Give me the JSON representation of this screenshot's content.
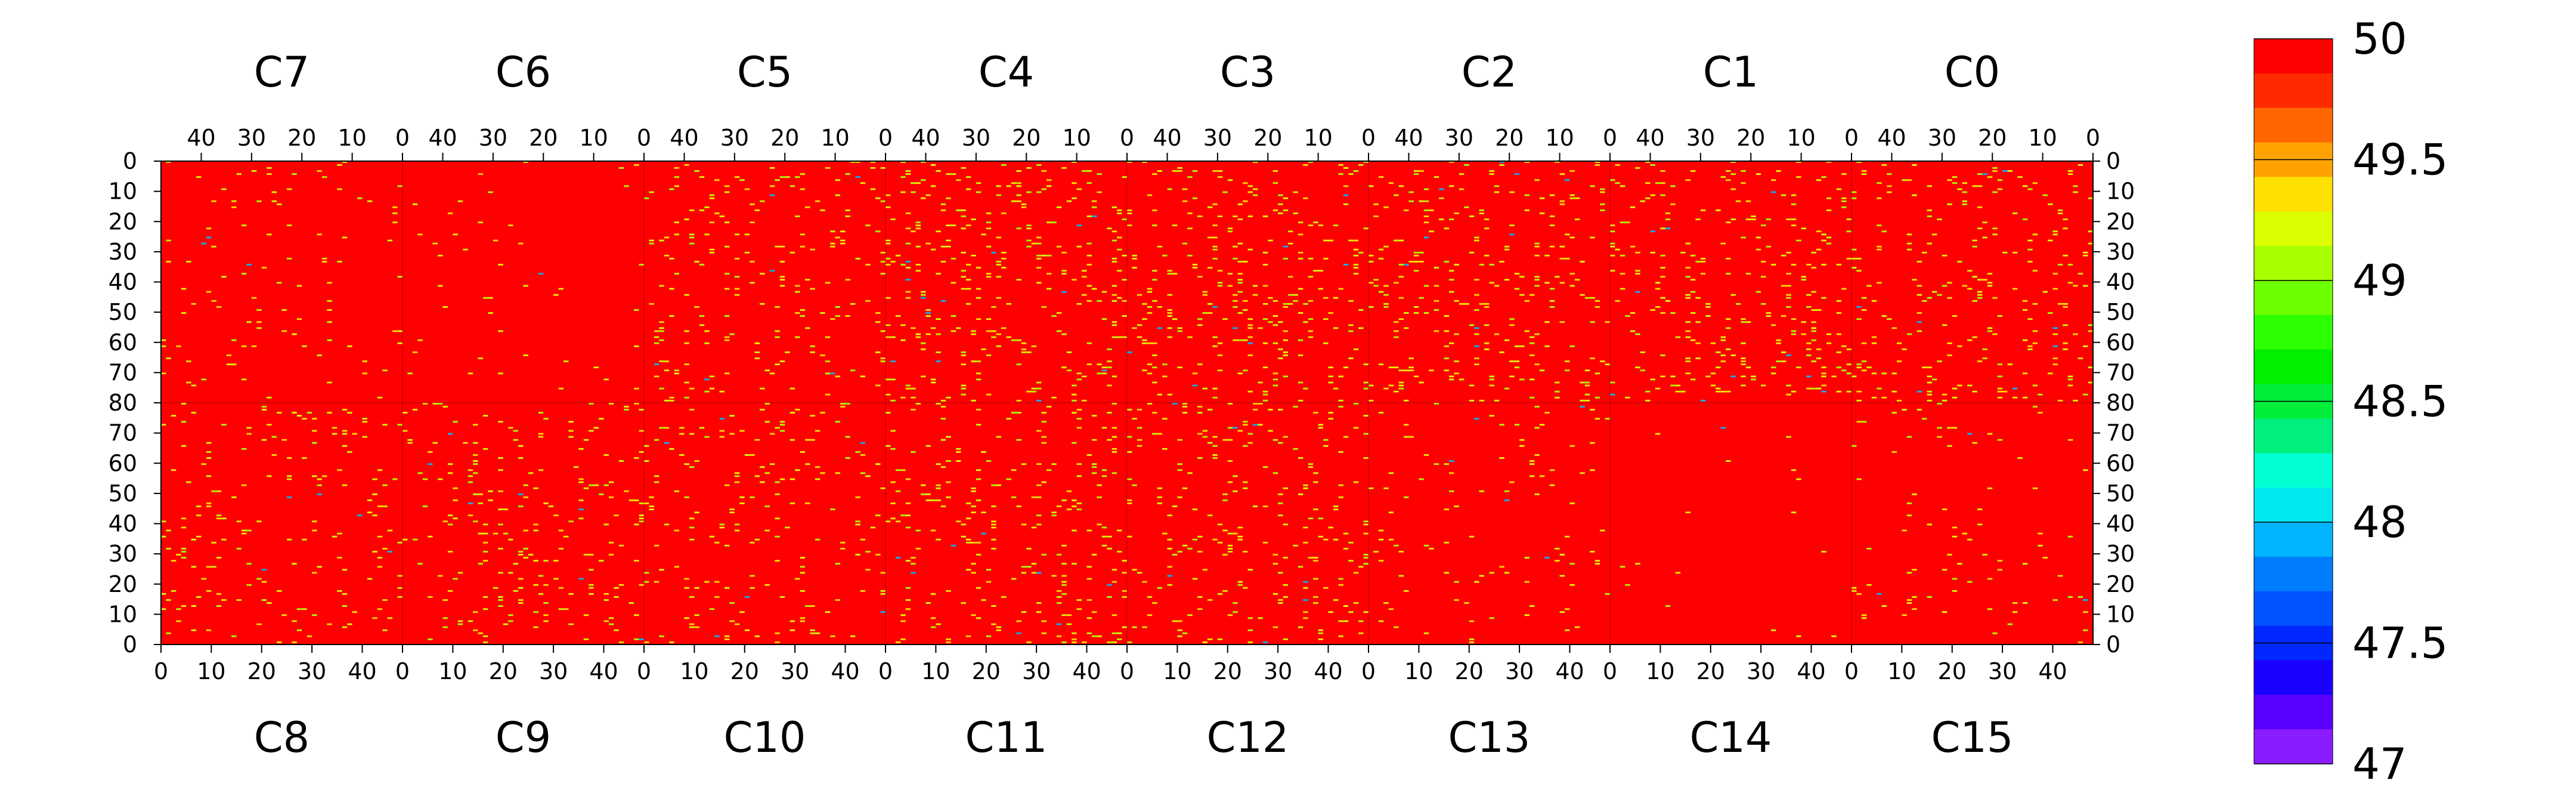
{
  "chart_data": {
    "type": "heatmap",
    "title": "",
    "background_value": 50,
    "top_chambers": [
      "C7",
      "C6",
      "C5",
      "C4",
      "C3",
      "C2",
      "C1",
      "C0"
    ],
    "bottom_chambers": [
      "C8",
      "C9",
      "C10",
      "C11",
      "C12",
      "C13",
      "C14",
      "C15"
    ],
    "top_x_ticks": [
      40,
      30,
      20,
      10,
      0
    ],
    "bottom_x_ticks": [
      0,
      10,
      20,
      30,
      40
    ],
    "x_range": [
      0,
      48
    ],
    "top_y_ticks": [
      0,
      10,
      20,
      30,
      40,
      50,
      60,
      70,
      80
    ],
    "bottom_y_ticks": [
      70,
      60,
      50,
      40,
      30,
      20,
      10,
      0
    ],
    "y_range": [
      0,
      80
    ],
    "colorbar": {
      "min": 47,
      "max": 50,
      "ticks": [
        "50",
        "49.5",
        "49",
        "48.5",
        "48",
        "47.5",
        "47"
      ],
      "colors": [
        "#ff0000",
        "#ff2a00",
        "#ff6600",
        "#ffa200",
        "#ffe000",
        "#dcff00",
        "#a8ff00",
        "#6cff00",
        "#2cff00",
        "#00f000",
        "#00ee3a",
        "#00f07e",
        "#00ffd2",
        "#00e8ee",
        "#00b4ff",
        "#007cff",
        "#0054ff",
        "#0028ff",
        "#1a00ff",
        "#5a00ff",
        "#8a1cff"
      ]
    },
    "hot_pixel_density": [
      0.055,
      0.07,
      0.065,
      0.07,
      0.08,
      0.045,
      0.01,
      0.025,
      0.045,
      0.05,
      0.045,
      0.06,
      0.055,
      0.03,
      0.003,
      0.02
    ]
  }
}
